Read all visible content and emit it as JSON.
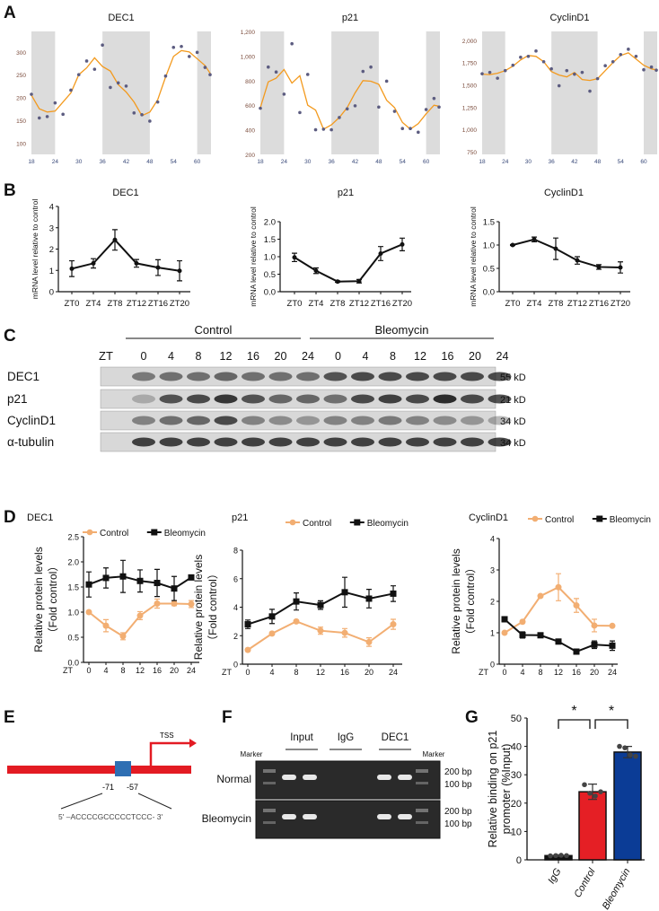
{
  "panel_labels": {
    "A": "A",
    "B": "B",
    "C": "C",
    "D": "D",
    "E": "E",
    "F": "F",
    "G": "G"
  },
  "colors": {
    "shade": "#dcdcdc",
    "fit": "#f39a1e",
    "dot": "#5c5c80",
    "control": "#f2ae72",
    "bleomycin": "#111111",
    "igg_bar": "#111111",
    "control_bar": "#e51f25",
    "bleomycin_bar": "#0b3c96",
    "promoter": "#e31b23",
    "site": "#2f6fb3"
  },
  "chart_data": [
    {
      "id": "A-DEC1",
      "type": "scatter",
      "title": "DEC1",
      "x_ticks": [
        18,
        24,
        30,
        36,
        42,
        48,
        54,
        60
      ],
      "xlim": [
        18,
        63.5
      ],
      "y_ticks": [
        100,
        150,
        200,
        250,
        300
      ],
      "ylim": [
        75,
        345
      ],
      "shaded_intervals": [
        [
          18,
          24
        ],
        [
          36,
          48
        ],
        [
          60,
          63.5
        ]
      ],
      "x": [
        18,
        20,
        22,
        24,
        26,
        28,
        30,
        32,
        34,
        36,
        38,
        40,
        42,
        44,
        46,
        48,
        50,
        52,
        54,
        56,
        58,
        60,
        62,
        64
      ],
      "points": [
        207,
        155,
        158,
        188,
        163,
        216,
        250,
        280,
        262,
        315,
        222,
        232,
        225,
        166,
        162,
        148,
        190,
        247,
        310,
        312,
        290,
        299,
        266,
        250
      ],
      "fit": [
        205,
        175,
        168,
        170,
        190,
        210,
        250,
        265,
        287,
        268,
        258,
        228,
        212,
        190,
        160,
        168,
        195,
        245,
        290,
        303,
        300,
        285,
        270,
        250
      ]
    },
    {
      "id": "A-p21",
      "type": "scatter",
      "title": "p21",
      "x_ticks": [
        18,
        24,
        30,
        36,
        42,
        48,
        54,
        60
      ],
      "xlim": [
        18,
        63.5
      ],
      "y_ticks": [
        "200",
        "400",
        "600",
        "800",
        "1,000",
        "1,200"
      ],
      "ylim": [
        200,
        1200
      ],
      "shaded_intervals": [
        [
          18,
          24
        ],
        [
          36,
          48
        ],
        [
          60,
          63.5
        ]
      ],
      "x": [
        18,
        20,
        22,
        24,
        26,
        28,
        30,
        32,
        34,
        36,
        38,
        40,
        42,
        44,
        46,
        48,
        50,
        52,
        54,
        56,
        58,
        60,
        62,
        64
      ],
      "points": [
        575,
        910,
        870,
        690,
        1100,
        540,
        850,
        400,
        405,
        400,
        500,
        570,
        595,
        875,
        910,
        585,
        795,
        550,
        410,
        410,
        380,
        565,
        655,
        585
      ],
      "fit": [
        580,
        790,
        820,
        890,
        780,
        840,
        600,
        560,
        405,
        440,
        500,
        580,
        700,
        800,
        795,
        770,
        640,
        580,
        460,
        405,
        450,
        530,
        600,
        590
      ]
    },
    {
      "id": "A-CyclinD1",
      "type": "scatter",
      "title": "CyclinD1",
      "x_ticks": [
        18,
        24,
        30,
        36,
        42,
        48,
        54,
        60
      ],
      "xlim": [
        18,
        63.5
      ],
      "y_ticks": [
        "750",
        "1,000",
        "1,250",
        "1,500",
        "1,750",
        "2,000"
      ],
      "ylim": [
        720,
        2100
      ],
      "shaded_intervals": [
        [
          18,
          24
        ],
        [
          36,
          48
        ],
        [
          60,
          63.5
        ]
      ],
      "x": [
        18,
        20,
        22,
        24,
        26,
        28,
        30,
        32,
        34,
        36,
        38,
        40,
        42,
        44,
        46,
        48,
        50,
        52,
        54,
        56,
        58,
        60,
        62,
        64
      ],
      "points": [
        1625,
        1640,
        1575,
        1660,
        1720,
        1810,
        1820,
        1880,
        1760,
        1680,
        1490,
        1660,
        1620,
        1640,
        1430,
        1570,
        1715,
        1760,
        1840,
        1900,
        1820,
        1670,
        1700,
        1665
      ],
      "fit": [
        1620,
        1615,
        1630,
        1660,
        1710,
        1780,
        1830,
        1820,
        1760,
        1650,
        1610,
        1590,
        1640,
        1560,
        1550,
        1570,
        1660,
        1750,
        1830,
        1860,
        1790,
        1720,
        1680,
        1665
      ]
    },
    {
      "id": "B-DEC1",
      "type": "line",
      "title": "DEC1",
      "ylabel": "mRNA level relative to control",
      "categories": [
        "ZT0",
        "ZT4",
        "ZT8",
        "ZT12",
        "ZT16",
        "ZT20"
      ],
      "ylim": [
        0,
        4
      ],
      "y_ticks": [
        "0",
        "1",
        "2",
        "3",
        "4"
      ],
      "values": [
        1.08,
        1.33,
        2.43,
        1.33,
        1.13,
        0.98
      ],
      "errors": [
        0.37,
        0.22,
        0.48,
        0.18,
        0.37,
        0.47
      ]
    },
    {
      "id": "B-p21",
      "type": "line",
      "title": "p21",
      "ylabel": "mRNA level relative to control",
      "categories": [
        "ZT0",
        "ZT4",
        "ZT8",
        "ZT12",
        "ZT16",
        "ZT20"
      ],
      "ylim": [
        0,
        2
      ],
      "y_ticks": [
        "0.0",
        "0.5",
        "1.0",
        "1.5",
        "2.0"
      ],
      "values": [
        0.98,
        0.6,
        0.29,
        0.3,
        1.09,
        1.35
      ],
      "errors": [
        0.12,
        0.08,
        0.02,
        0.05,
        0.2,
        0.18
      ]
    },
    {
      "id": "B-CyclinD1",
      "type": "line",
      "title": "CyclinD1",
      "ylabel": "mRNA level relative to control",
      "categories": [
        "ZT0",
        "ZT4",
        "ZT8",
        "ZT12",
        "ZT16",
        "ZT20"
      ],
      "ylim": [
        0,
        1.5
      ],
      "y_ticks": [
        "0.0",
        "0.5",
        "1.0",
        "1.5"
      ],
      "values": [
        1.0,
        1.12,
        0.92,
        0.67,
        0.53,
        0.52
      ],
      "errors": [
        0.01,
        0.05,
        0.23,
        0.08,
        0.05,
        0.12
      ]
    },
    {
      "id": "D-DEC1",
      "type": "line",
      "title": "DEC1",
      "ylabel": [
        "Relative protein levels",
        "（Fold control）"
      ],
      "x_prefix": "ZT",
      "categories": [
        "0",
        "4",
        "8",
        "12",
        "16",
        "20",
        "24"
      ],
      "ylim": [
        0,
        2.5
      ],
      "y_ticks": [
        "0.0",
        "0.5",
        "1.0",
        "1.5",
        "2.0",
        "2.5"
      ],
      "series": [
        {
          "name": "Control",
          "values": [
            1.0,
            0.73,
            0.52,
            0.93,
            1.17,
            1.17,
            1.16
          ],
          "errors": [
            0.02,
            0.12,
            0.07,
            0.08,
            0.09,
            0.04,
            0.07
          ]
        },
        {
          "name": "Bleomycin",
          "values": [
            1.55,
            1.68,
            1.71,
            1.62,
            1.58,
            1.47,
            1.69
          ],
          "errors": [
            0.25,
            0.2,
            0.32,
            0.22,
            0.27,
            0.24,
            0.03
          ]
        }
      ]
    },
    {
      "id": "D-p21",
      "type": "line",
      "title": "p21",
      "ylabel": [
        "Relative protein levels",
        "（Fold control）"
      ],
      "x_prefix": "ZT",
      "categories": [
        "0",
        "4",
        "8",
        "12",
        "16",
        "20",
        "24"
      ],
      "ylim": [
        0,
        8
      ],
      "y_ticks": [
        "0",
        "2",
        "4",
        "6",
        "8"
      ],
      "series": [
        {
          "name": "Control",
          "values": [
            1.0,
            2.15,
            3.0,
            2.35,
            2.2,
            1.55,
            2.8
          ],
          "errors": [
            0.05,
            0.1,
            0.1,
            0.25,
            0.3,
            0.3,
            0.35
          ]
        },
        {
          "name": "Bleomycin",
          "values": [
            2.8,
            3.35,
            4.4,
            4.15,
            5.05,
            4.6,
            4.95
          ],
          "errors": [
            0.3,
            0.5,
            0.6,
            0.3,
            1.05,
            0.65,
            0.55
          ]
        }
      ]
    },
    {
      "id": "D-CyclinD1",
      "type": "line",
      "title": "CyclinD1",
      "ylabel": [
        "Relative protein levels",
        "（Fold control）"
      ],
      "x_prefix": "ZT",
      "categories": [
        "0",
        "4",
        "8",
        "12",
        "16",
        "20",
        "24"
      ],
      "ylim": [
        0,
        4
      ],
      "y_ticks": [
        "0",
        "1",
        "2",
        "3",
        "4"
      ],
      "series": [
        {
          "name": "Control",
          "values": [
            1.0,
            1.35,
            2.17,
            2.45,
            1.87,
            1.23,
            1.22
          ],
          "errors": [
            0.03,
            0.04,
            0.03,
            0.43,
            0.22,
            0.2,
            0.03
          ]
        },
        {
          "name": "Bleomycin",
          "values": [
            1.43,
            0.93,
            0.92,
            0.72,
            0.4,
            0.62,
            0.59
          ],
          "errors": [
            0.08,
            0.1,
            0.05,
            0.03,
            0.05,
            0.12,
            0.15
          ]
        }
      ]
    },
    {
      "id": "G",
      "type": "bar",
      "ylabel": [
        "Relative binding on p21",
        "promoter (%Input)"
      ],
      "categories": [
        "IgG",
        "Control",
        "Bleomycin"
      ],
      "values": [
        1.5,
        24,
        38
      ],
      "errors": [
        0.3,
        2.7,
        2.0
      ],
      "replicates": [
        [
          1.4,
          1.5,
          1.6,
          1.5
        ],
        [
          26.5,
          23.5,
          22.5,
          24
        ],
        [
          40,
          39.5,
          37,
          36.5
        ]
      ],
      "ylim": [
        0,
        50
      ],
      "y_ticks": [
        "0",
        "10",
        "20",
        "30",
        "40",
        "50"
      ],
      "significance": [
        {
          "pair": [
            "IgG",
            "Control"
          ],
          "label": "*"
        },
        {
          "pair": [
            "Control",
            "Bleomycin"
          ],
          "label": "*"
        }
      ]
    }
  ],
  "blot": {
    "groups": [
      "Control",
      "Bleomycin"
    ],
    "zt_label": "ZT",
    "lanes": [
      "0",
      "4",
      "8",
      "12",
      "16",
      "20",
      "24",
      "0",
      "4",
      "8",
      "12",
      "16",
      "20",
      "24"
    ],
    "rows": [
      {
        "name": "DEC1",
        "size": "55 kD"
      },
      {
        "name": "p21",
        "size": "21 kD"
      },
      {
        "name": "CyclinD1",
        "size": "34 kD"
      },
      {
        "name": "α-tubulin",
        "size": "34 kD"
      }
    ]
  },
  "diagram_e": {
    "tss": "TSS",
    "pos_start": "-71",
    "pos_end": "-57",
    "sequence": "5' –ACCCCGCCCCCTCCC- 3'"
  },
  "gel_f": {
    "lanes": [
      "Input",
      "IgG",
      "DEC1"
    ],
    "marker": "Marker",
    "rows": [
      "Normal",
      "Bleomycin"
    ],
    "sizes": [
      "200 bp",
      "100 bp"
    ]
  }
}
